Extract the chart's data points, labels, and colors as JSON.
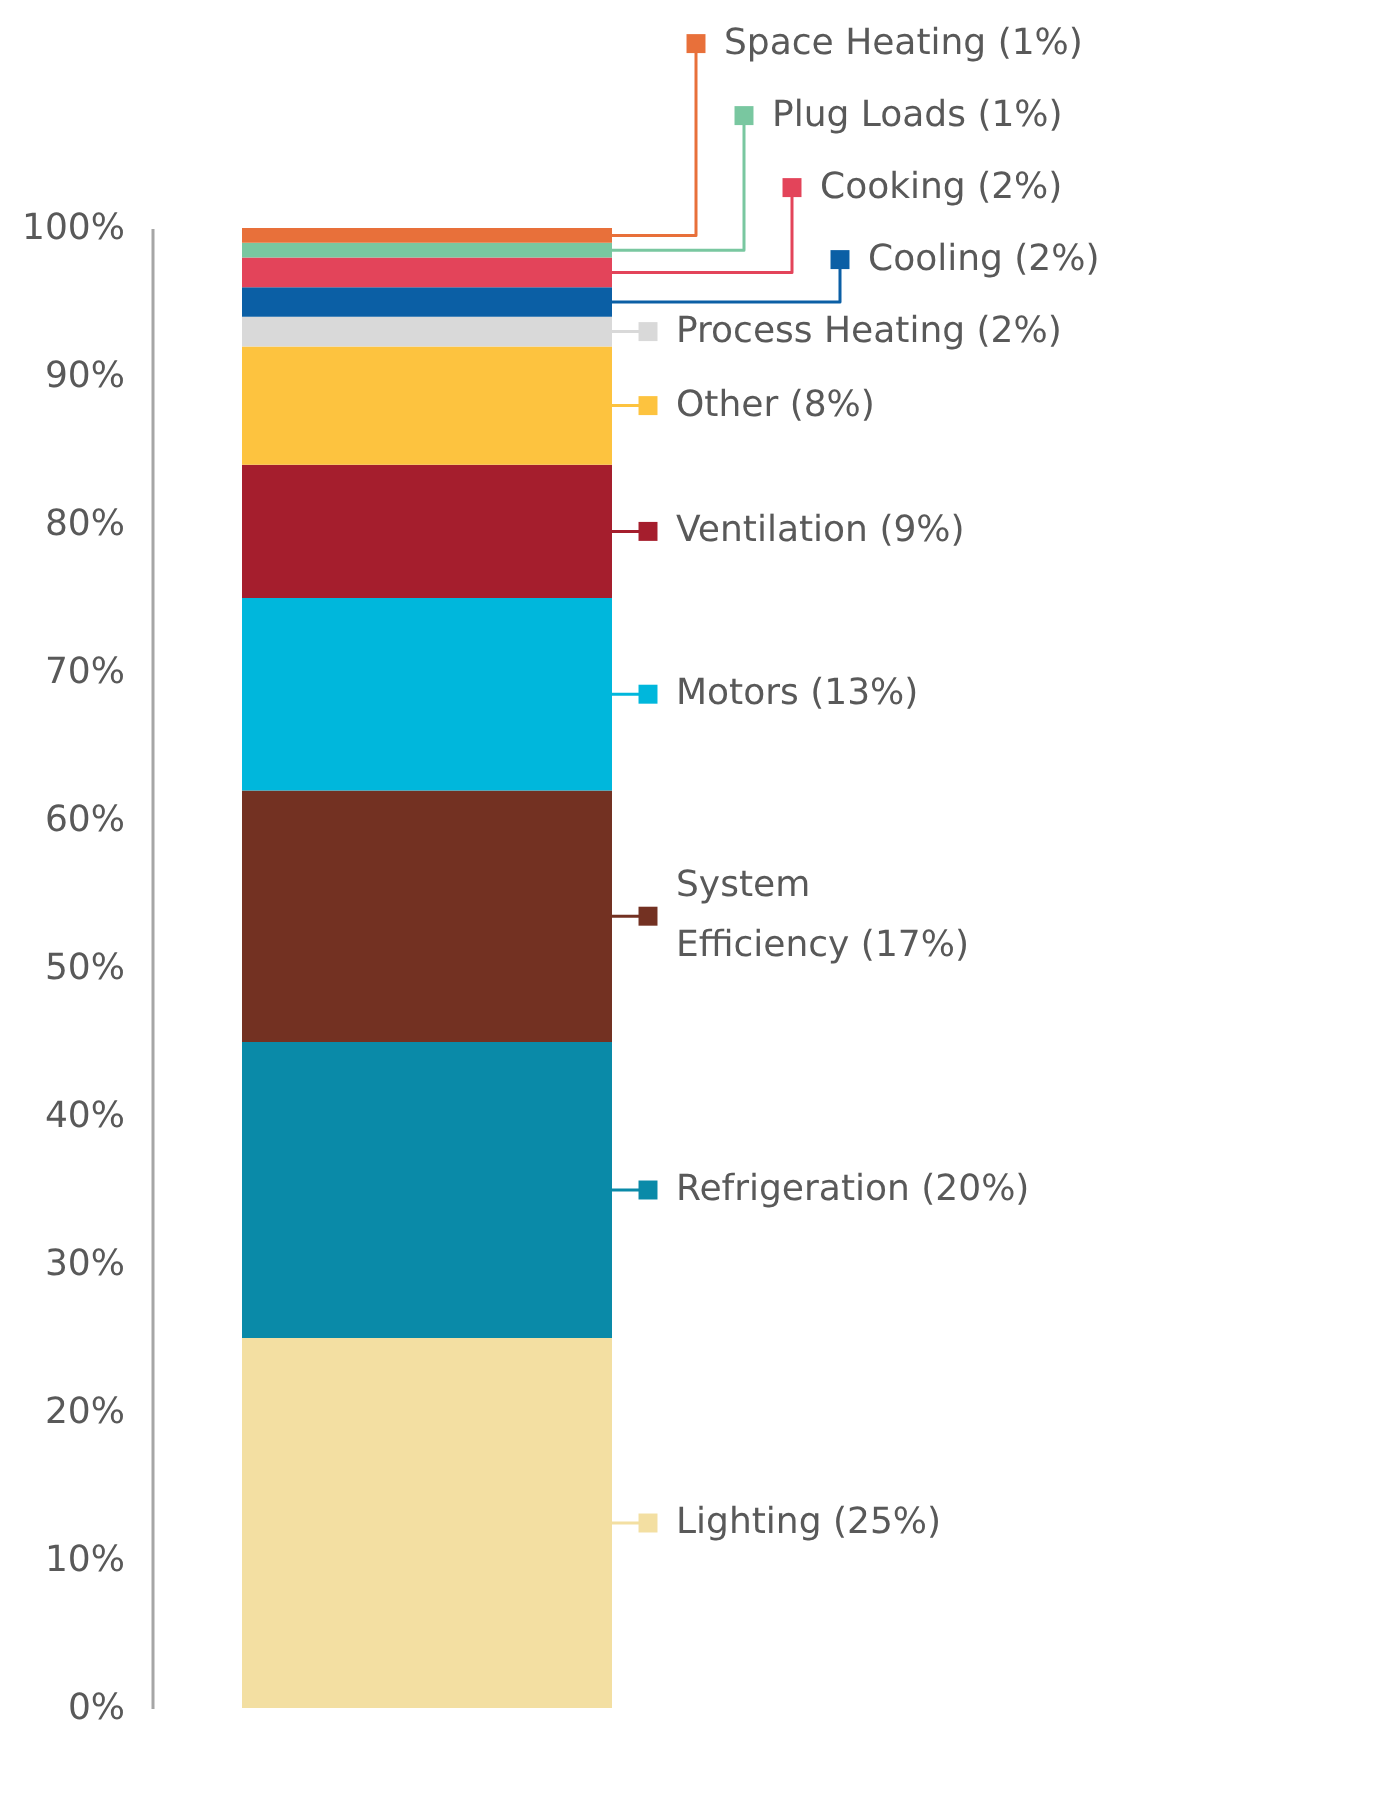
{
  "chart_data": {
    "type": "bar",
    "stacked": true,
    "categories": [
      null
    ],
    "ylim": [
      0,
      100
    ],
    "yticks": [
      {
        "value": 0,
        "label": "0%"
      },
      {
        "value": 10,
        "label": "10%"
      },
      {
        "value": 20,
        "label": "20%"
      },
      {
        "value": 30,
        "label": "30%"
      },
      {
        "value": 40,
        "label": "40%"
      },
      {
        "value": 50,
        "label": "50%"
      },
      {
        "value": 60,
        "label": "60%"
      },
      {
        "value": 70,
        "label": "70%"
      },
      {
        "value": 80,
        "label": "80%"
      },
      {
        "value": 90,
        "label": "90%"
      },
      {
        "value": 100,
        "label": "100%"
      }
    ],
    "grid": false,
    "legend": "right",
    "series": [
      {
        "name": "Lighting (25%)",
        "color": "#f3dfa2",
        "values": [
          25
        ]
      },
      {
        "name": "Refrigeration (20%)",
        "color": "#0a8aa8",
        "values": [
          20
        ]
      },
      {
        "name": "System Efficiency (17%)",
        "color": "#733122",
        "values": [
          17
        ]
      },
      {
        "name": "Motors (13%)",
        "color": "#00b7dc",
        "values": [
          13
        ]
      },
      {
        "name": "Ventilation (9%)",
        "color": "#a51e2d",
        "values": [
          9
        ]
      },
      {
        "name": "Other (8%)",
        "color": "#fdc33f",
        "values": [
          8
        ]
      },
      {
        "name": "Process Heating (2%)",
        "color": "#d9d9d9",
        "values": [
          2
        ]
      },
      {
        "name": "Cooling (2%)",
        "color": "#0b5fa5",
        "values": [
          2
        ]
      },
      {
        "name": "Cooking (2%)",
        "color": "#e3445a",
        "values": [
          2
        ]
      },
      {
        "name": "Plug Loads (1%)",
        "color": "#79c7a0",
        "values": [
          1
        ]
      },
      {
        "name": "Space Heating (1%)",
        "color": "#e8703a",
        "values": [
          1
        ]
      }
    ]
  }
}
